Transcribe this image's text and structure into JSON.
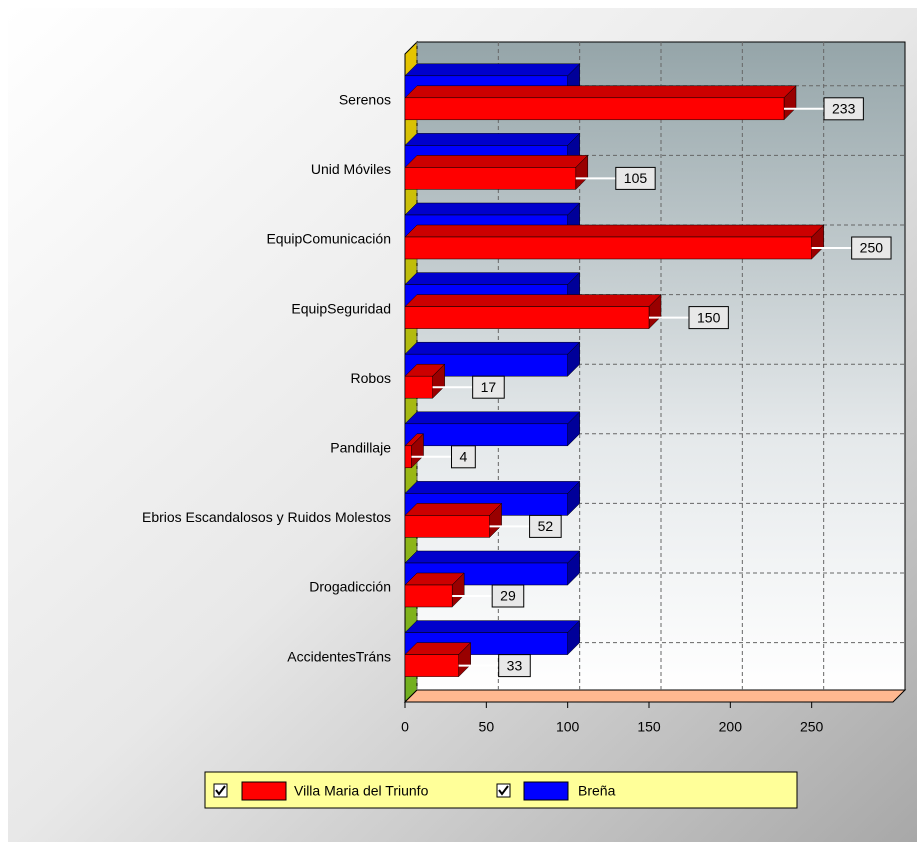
{
  "chart_data": {
    "type": "bar3d_horizontal",
    "categories": [
      "Serenos",
      "Unid Móviles",
      "EquipComunicación",
      "EquipSeguridad",
      "Robos",
      "Pandillaje",
      "Ebrios Escandalosos y Ruidos Molestos",
      "Drogadicción",
      "AccidentesTráns"
    ],
    "series": [
      {
        "name": "Villa Maria del Triunfo",
        "color": "#ff0000",
        "values": [
          233,
          105,
          250,
          150,
          17,
          4,
          52,
          29,
          33
        ]
      },
      {
        "name": "Breña",
        "color": "#0000ff",
        "values": [
          100,
          100,
          100,
          100,
          100,
          100,
          100,
          100,
          100
        ]
      }
    ],
    "xlim": [
      0,
      300
    ],
    "xticks": [
      0,
      50,
      100,
      150,
      200,
      250
    ],
    "grid": true,
    "legend": "bottom"
  }
}
